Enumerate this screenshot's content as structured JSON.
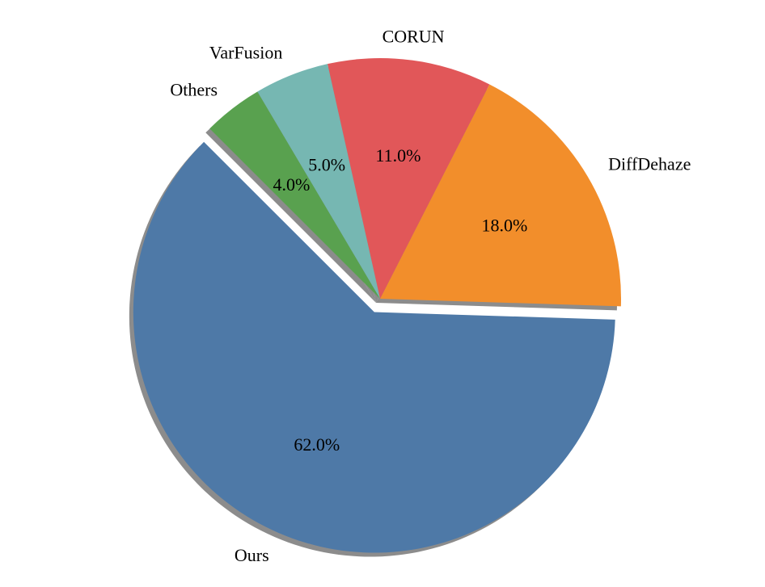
{
  "chart_data": {
    "type": "pie",
    "title": "",
    "start_angle_deg": 135,
    "direction": "counterclockwise",
    "shadow": true,
    "explode": [
      "Ours"
    ],
    "slices": [
      {
        "label": "Ours",
        "value": 62.0,
        "pct_label": "62.0%",
        "color": "#4e79a7"
      },
      {
        "label": "DiffDehaze",
        "value": 18.0,
        "pct_label": "18.0%",
        "color": "#f28e2b"
      },
      {
        "label": "CORUN",
        "value": 11.0,
        "pct_label": "11.0%",
        "color": "#e15759"
      },
      {
        "label": "VarFusion",
        "value": 5.0,
        "pct_label": "5.0%",
        "color": "#76b7b2"
      },
      {
        "label": "Others",
        "value": 4.0,
        "pct_label": "4.0%",
        "color": "#59a14f"
      }
    ]
  }
}
